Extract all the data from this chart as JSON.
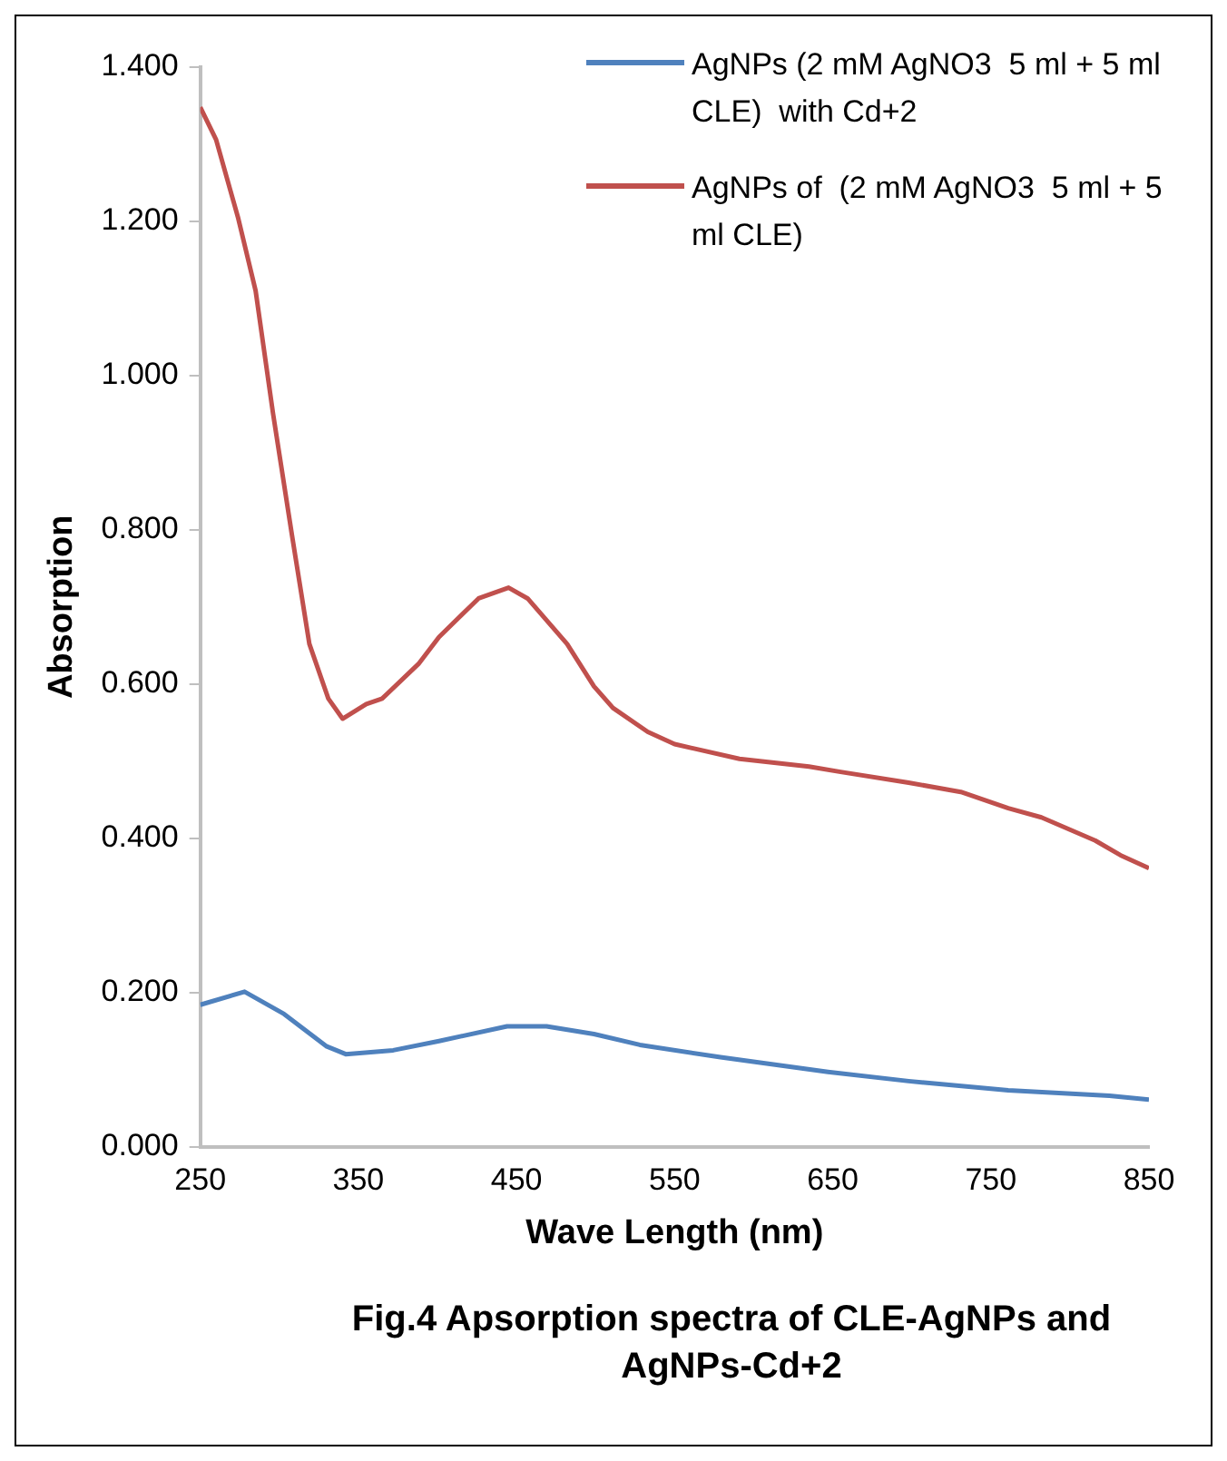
{
  "chart_data": {
    "type": "line",
    "xlabel": "Wave Length (nm)",
    "ylabel": "Absorption",
    "annotations": [
      "Fig.4 Apsorption spectra of CLE-AgNPs and AgNPs-Cd+2"
    ],
    "xlim": [
      250,
      850
    ],
    "xticks": [
      250,
      350,
      450,
      550,
      650,
      750,
      850
    ],
    "ylim": [
      0,
      1.4
    ],
    "yticks": [
      {
        "value": 0,
        "label": "0.000"
      },
      {
        "value": 0.2,
        "label": "0.200"
      },
      {
        "value": 0.4,
        "label": "0.400"
      },
      {
        "value": 0.6,
        "label": "0.600"
      },
      {
        "value": 0.8,
        "label": "0.800"
      },
      {
        "value": 1.0,
        "label": "1.000"
      },
      {
        "value": 1.2,
        "label": "1.200"
      },
      {
        "value": 1.4,
        "label": "1.400"
      }
    ],
    "grid": false,
    "legend": "top right",
    "marker": "none",
    "line_style": "solid",
    "series": [
      {
        "name": "AgNPs (2 mM AgNO3  5 ml + 5 ml CLE)  with Cd+2",
        "color": "#4f81bd",
        "x": [
          250,
          278,
          303,
          330,
          342,
          372,
          401,
          444,
          469,
          499,
          528,
          579,
          647,
          698,
          761,
          825,
          850
        ],
        "values": [
          0.184,
          0.201,
          0.172,
          0.13,
          0.12,
          0.125,
          0.137,
          0.156,
          0.156,
          0.146,
          0.132,
          0.116,
          0.097,
          0.085,
          0.073,
          0.066,
          0.061
        ]
      },
      {
        "name": "AgNPs of  (2 mM AgNO3  5 ml + 5 ml CLE)",
        "color": "#c0504d",
        "x": [
          250,
          260,
          274,
          285,
          296,
          308,
          319,
          331,
          340,
          355,
          365,
          388,
          401,
          426,
          445,
          457,
          482,
          499,
          511,
          533,
          550,
          591,
          635,
          655,
          698,
          731,
          761,
          782,
          816,
          832,
          850
        ],
        "values": [
          1.348,
          1.306,
          1.204,
          1.11,
          0.951,
          0.793,
          0.652,
          0.581,
          0.555,
          0.574,
          0.581,
          0.626,
          0.661,
          0.711,
          0.725,
          0.711,
          0.652,
          0.597,
          0.569,
          0.538,
          0.522,
          0.503,
          0.493,
          0.486,
          0.472,
          0.46,
          0.439,
          0.427,
          0.397,
          0.378,
          0.361
        ]
      }
    ]
  }
}
